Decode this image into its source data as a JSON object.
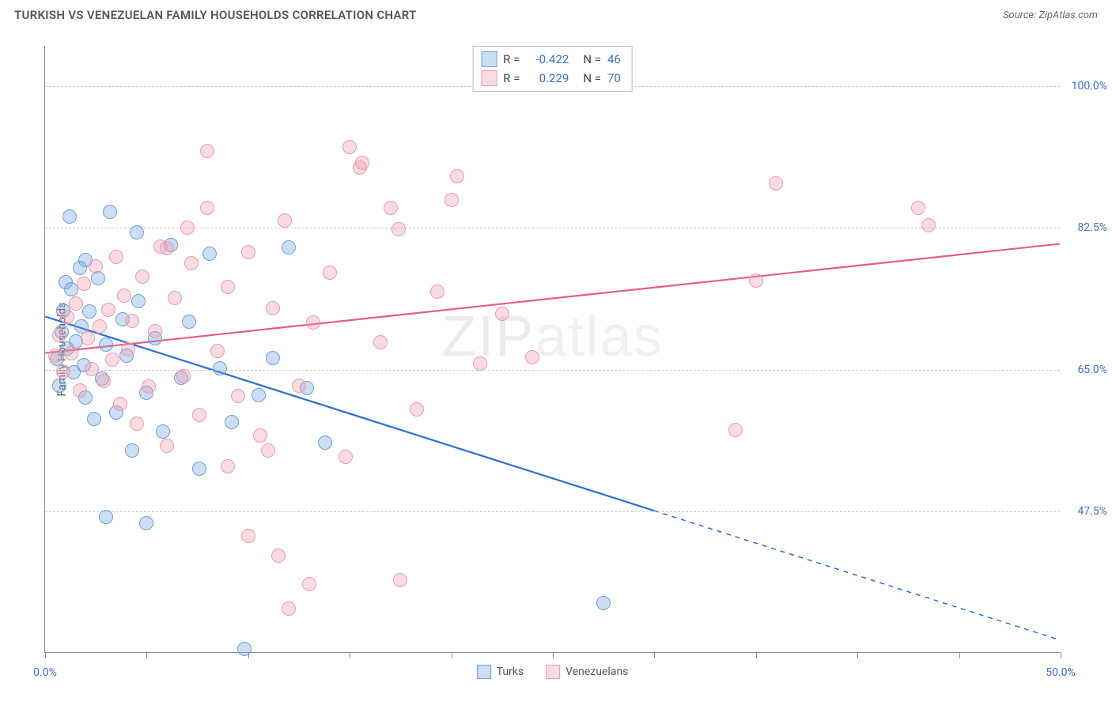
{
  "title": "TURKISH VS VENEZUELAN FAMILY HOUSEHOLDS CORRELATION CHART",
  "source": "Source: ZipAtlas.com",
  "watermark": "ZIPatlas",
  "y_axis_title": "Family Households",
  "chart": {
    "type": "scatter",
    "background_color": "#ffffff",
    "grid_color": "#cccccc",
    "xlim": [
      0,
      50
    ],
    "ylim": [
      30,
      105
    ],
    "x_ticks": [
      0,
      5,
      10,
      15,
      20,
      25,
      30,
      35,
      40,
      45,
      50
    ],
    "x_tick_labels": {
      "0": "0.0%",
      "50": "50.0%"
    },
    "y_ticks": [
      47.5,
      65.0,
      82.5,
      100.0
    ],
    "y_tick_labels": [
      "47.5%",
      "65.0%",
      "82.5%",
      "100.0%"
    ],
    "axis_label_color": "#3b6fc9",
    "point_radius": 9,
    "point_stroke_width": 1.5,
    "series": [
      {
        "name": "Turks",
        "fill_color": "rgba(109,160,222,0.35)",
        "stroke_color": "#6da0de",
        "trend_color": "#2f6fd0",
        "trend_width": 2.2,
        "R": "-0.422",
        "N": "46",
        "trend": {
          "x0": 0,
          "y0": 71.5,
          "x1": 30,
          "y1": 47.5,
          "x_ext": 50,
          "y_ext": 31.5,
          "dashed_from": 30
        },
        "points": [
          [
            0.6,
            66.3
          ],
          [
            0.7,
            63.0
          ],
          [
            0.8,
            69.6
          ],
          [
            0.9,
            72.3
          ],
          [
            1.0,
            75.8
          ],
          [
            1.1,
            67.6
          ],
          [
            1.2,
            83.9
          ],
          [
            1.3,
            74.9
          ],
          [
            1.4,
            64.7
          ],
          [
            1.5,
            68.5
          ],
          [
            1.7,
            77.6
          ],
          [
            1.8,
            70.3
          ],
          [
            1.9,
            65.5
          ],
          [
            2.0,
            61.5
          ],
          [
            2.2,
            72.2
          ],
          [
            2.4,
            58.9
          ],
          [
            2.6,
            76.3
          ],
          [
            2.8,
            63.9
          ],
          [
            3.0,
            68.1
          ],
          [
            3.2,
            84.5
          ],
          [
            3.5,
            59.7
          ],
          [
            3.8,
            71.2
          ],
          [
            4.0,
            66.7
          ],
          [
            4.3,
            55.0
          ],
          [
            4.6,
            73.5
          ],
          [
            5.0,
            62.1
          ],
          [
            5.4,
            68.9
          ],
          [
            5.8,
            57.3
          ],
          [
            6.2,
            80.4
          ],
          [
            6.7,
            64.0
          ],
          [
            7.1,
            70.9
          ],
          [
            7.6,
            52.8
          ],
          [
            8.1,
            79.3
          ],
          [
            8.6,
            65.2
          ],
          [
            9.2,
            58.5
          ],
          [
            9.8,
            30.5
          ],
          [
            10.5,
            61.8
          ],
          [
            11.2,
            66.4
          ],
          [
            12.0,
            80.1
          ],
          [
            12.9,
            62.7
          ],
          [
            13.8,
            56.0
          ],
          [
            5.0,
            46.0
          ],
          [
            3.0,
            46.8
          ],
          [
            2.0,
            78.5
          ],
          [
            27.5,
            36.2
          ],
          [
            4.5,
            82.0
          ]
        ]
      },
      {
        "name": "Venezuelans",
        "fill_color": "rgba(239,154,172,0.35)",
        "stroke_color": "#ef9aac",
        "trend_color": "#e75d82",
        "trend_width": 2.2,
        "R": "0.229",
        "N": "70",
        "trend": {
          "x0": 0,
          "y0": 67.0,
          "x1": 50,
          "y1": 80.5,
          "x_ext": 50,
          "y_ext": 80.5,
          "dashed_from": 50
        },
        "points": [
          [
            0.5,
            66.7
          ],
          [
            0.7,
            69.3
          ],
          [
            0.9,
            64.8
          ],
          [
            1.1,
            71.5
          ],
          [
            1.3,
            67.0
          ],
          [
            1.5,
            73.2
          ],
          [
            1.7,
            62.4
          ],
          [
            1.9,
            75.6
          ],
          [
            2.1,
            68.9
          ],
          [
            2.3,
            65.1
          ],
          [
            2.5,
            77.8
          ],
          [
            2.7,
            70.3
          ],
          [
            2.9,
            63.6
          ],
          [
            3.1,
            72.4
          ],
          [
            3.3,
            66.2
          ],
          [
            3.5,
            78.9
          ],
          [
            3.7,
            60.8
          ],
          [
            3.9,
            74.1
          ],
          [
            4.1,
            67.5
          ],
          [
            4.3,
            71.0
          ],
          [
            4.5,
            58.3
          ],
          [
            4.8,
            76.5
          ],
          [
            5.1,
            62.9
          ],
          [
            5.4,
            69.7
          ],
          [
            5.7,
            80.2
          ],
          [
            6.0,
            55.6
          ],
          [
            6.4,
            73.8
          ],
          [
            6.8,
            64.2
          ],
          [
            7.2,
            78.1
          ],
          [
            7.6,
            59.4
          ],
          [
            8.0,
            85.0
          ],
          [
            8.5,
            67.3
          ],
          [
            9.0,
            75.2
          ],
          [
            9.5,
            61.7
          ],
          [
            10.0,
            79.5
          ],
          [
            10.6,
            56.9
          ],
          [
            11.2,
            72.6
          ],
          [
            11.8,
            83.4
          ],
          [
            12.5,
            63.0
          ],
          [
            13.2,
            70.8
          ],
          [
            14.0,
            77.0
          ],
          [
            14.8,
            54.2
          ],
          [
            15.6,
            90.5
          ],
          [
            16.5,
            68.4
          ],
          [
            17.4,
            82.3
          ],
          [
            18.3,
            60.1
          ],
          [
            19.3,
            74.6
          ],
          [
            20.3,
            88.9
          ],
          [
            21.4,
            65.7
          ],
          [
            22.5,
            71.9
          ],
          [
            8.0,
            92.0
          ],
          [
            15.0,
            92.5
          ],
          [
            15.5,
            90.0
          ],
          [
            17.0,
            85.0
          ],
          [
            20.0,
            86.0
          ],
          [
            10.0,
            44.5
          ],
          [
            11.5,
            42.0
          ],
          [
            13.0,
            38.5
          ],
          [
            17.5,
            39.0
          ],
          [
            12.0,
            35.5
          ],
          [
            11.0,
            55.0
          ],
          [
            9.0,
            53.0
          ],
          [
            6.0,
            80.0
          ],
          [
            7.0,
            82.5
          ],
          [
            36.0,
            88.0
          ],
          [
            35.0,
            76.0
          ],
          [
            34.0,
            57.5
          ],
          [
            43.0,
            85.0
          ],
          [
            43.5,
            82.8
          ],
          [
            24.0,
            66.5
          ]
        ]
      }
    ]
  }
}
